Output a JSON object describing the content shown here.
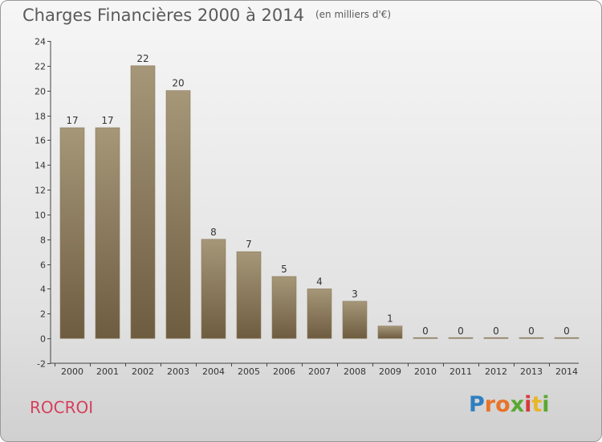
{
  "title": "Charges Financières 2000 à 2014",
  "title_unit": "(en milliers d'€)",
  "place": "ROCROI",
  "logo": {
    "text": "Proxiti",
    "letter_colors": [
      "#2f7fc1",
      "#e8732a",
      "#e8732a",
      "#5aa832",
      "#d63a3a",
      "#e8b62a",
      "#5aa832"
    ]
  },
  "colors": {
    "bar_top": "#a69779",
    "bar_bottom": "#6e5c40",
    "place": "#d6405c"
  },
  "chart_data": {
    "type": "bar",
    "title": "Charges Financières 2000 à 2014",
    "categories": [
      "2000",
      "2001",
      "2002",
      "2003",
      "2004",
      "2005",
      "2006",
      "2007",
      "2008",
      "2009",
      "2010",
      "2011",
      "2012",
      "2013",
      "2014"
    ],
    "values": [
      17,
      17,
      22,
      20,
      8,
      7,
      5,
      4,
      3,
      1,
      0,
      0,
      0,
      0,
      0
    ],
    "ylim": [
      -2,
      24
    ],
    "yticks": [
      -2,
      0,
      2,
      4,
      6,
      8,
      10,
      12,
      14,
      16,
      18,
      20,
      22,
      24
    ],
    "grid": false,
    "xlabel": "",
    "ylabel": ""
  }
}
